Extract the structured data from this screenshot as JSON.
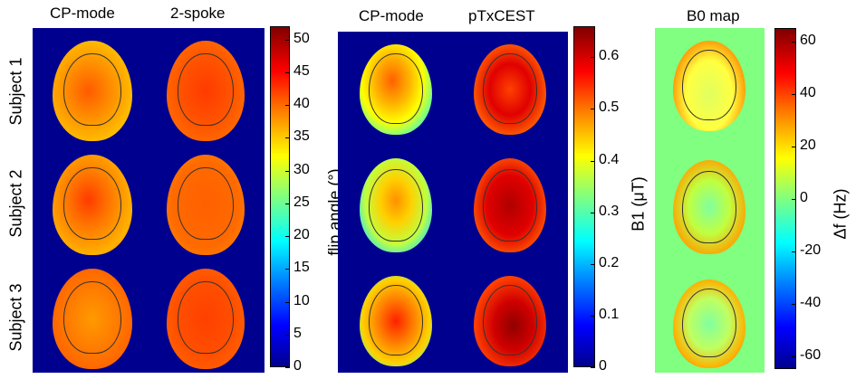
{
  "panel1": {
    "col_titles": [
      "CP-mode",
      "2-spoke"
    ],
    "row_labels": [
      "Subject 1",
      "Subject 2",
      "Subject 3"
    ],
    "colorbar": {
      "label": "flip angle (°)",
      "ticks": [
        "50",
        "45",
        "40",
        "35",
        "30",
        "25",
        "20",
        "15",
        "10",
        "5",
        "0"
      ],
      "range": [
        0,
        52
      ]
    }
  },
  "panel2": {
    "col_titles": [
      "CP-mode",
      "pTxCEST"
    ],
    "colorbar": {
      "label": "B1 (μT)",
      "ticks": [
        "0.6",
        "0.5",
        "0.4",
        "0.3",
        "0.2",
        "0.1",
        "0"
      ],
      "range": [
        0,
        0.66
      ]
    }
  },
  "panel3": {
    "title": "B0 map",
    "colorbar": {
      "label": "Δf (Hz)",
      "ticks": [
        "60",
        "40",
        "20",
        "0",
        "-20",
        "-40",
        "-60"
      ],
      "range": [
        -65,
        65
      ]
    }
  },
  "colors": {
    "background_dark": "#00008f",
    "background_green": "#80ff80"
  }
}
